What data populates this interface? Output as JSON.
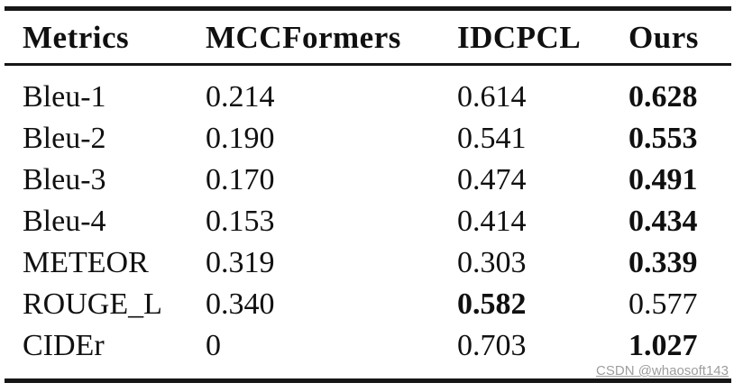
{
  "table": {
    "columns": [
      {
        "label": "Metrics"
      },
      {
        "label": "MCCFormers"
      },
      {
        "label": "IDCPCL"
      },
      {
        "label": "Ours"
      }
    ],
    "rows": [
      {
        "metric": "Bleu-1",
        "mccformers": "0.214",
        "idcpcl": "0.614",
        "ours": "0.628",
        "best": "ours"
      },
      {
        "metric": "Bleu-2",
        "mccformers": "0.190",
        "idcpcl": "0.541",
        "ours": "0.553",
        "best": "ours"
      },
      {
        "metric": "Bleu-3",
        "mccformers": "0.170",
        "idcpcl": "0.474",
        "ours": "0.491",
        "best": "ours"
      },
      {
        "metric": "Bleu-4",
        "mccformers": "0.153",
        "idcpcl": "0.414",
        "ours": "0.434",
        "best": "ours"
      },
      {
        "metric": "METEOR",
        "mccformers": "0.319",
        "idcpcl": "0.303",
        "ours": "0.339",
        "best": "ours"
      },
      {
        "metric": "ROUGE_L",
        "mccformers": "0.340",
        "idcpcl": "0.582",
        "ours": "0.577",
        "best": "idcpcl"
      },
      {
        "metric": "CIDEr",
        "mccformers": "0",
        "idcpcl": "0.703",
        "ours": "1.027",
        "best": "ours"
      }
    ]
  },
  "watermark": {
    "text": "CSDN @whaosoft143",
    "color": "#9d9d9d"
  },
  "colors": {
    "background": "#ffffff",
    "text": "#101010",
    "rule": "#161616"
  },
  "chart_data": {
    "type": "table",
    "categories": [
      "Bleu-1",
      "Bleu-2",
      "Bleu-3",
      "Bleu-4",
      "METEOR",
      "ROUGE_L",
      "CIDEr"
    ],
    "series": [
      {
        "name": "MCCFormers",
        "values": [
          0.214,
          0.19,
          0.17,
          0.153,
          0.319,
          0.34,
          0
        ]
      },
      {
        "name": "IDCPCL",
        "values": [
          0.614,
          0.541,
          0.474,
          0.414,
          0.303,
          0.582,
          0.703
        ]
      },
      {
        "name": "Ours",
        "values": [
          0.628,
          0.553,
          0.491,
          0.434,
          0.339,
          0.577,
          1.027
        ]
      }
    ],
    "title": ""
  }
}
